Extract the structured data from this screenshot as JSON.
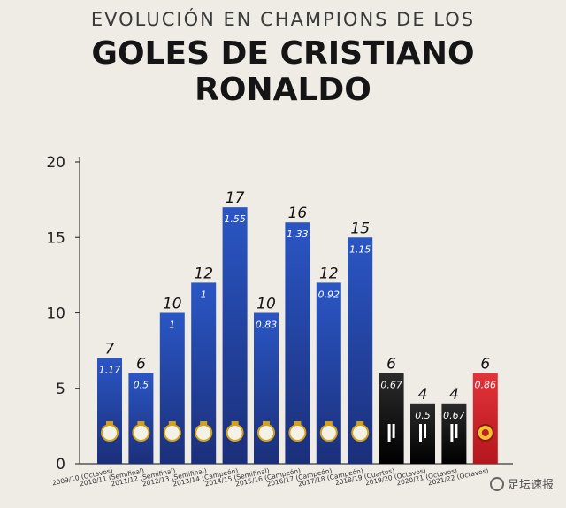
{
  "header": {
    "subtitle": "EVOLUCIÓN EN CHAMPIONS DE LOS",
    "title": "GOLES DE CRISTIANO RONALDO"
  },
  "watermark": {
    "text": "足坛速报"
  },
  "colors": {
    "real_madrid": "#1e3f9a",
    "juventus": "#111111",
    "manchester_united": "#d9282f",
    "background": "#efece6"
  },
  "chart_data": {
    "type": "bar",
    "title": "GOLES DE CRISTIANO RONALDO",
    "ylim": [
      0,
      20
    ],
    "yticks": [
      0,
      5,
      10,
      15,
      20
    ],
    "grid": false,
    "categories": [
      "2009/10 (Octavos)",
      "2010/11 (Semifinal)",
      "2011/12 (Semifinal)",
      "2012/13 (Semifinal)",
      "2013/14 (Campeón)",
      "2014/15 (Semifinal)",
      "2015/16 (Campeón)",
      "2016/17 (Campeón)",
      "2017/18 (Campeón)",
      "2018/19 (Cuartos)",
      "2019/20 (Octavos)",
      "2020/21 (Octavos)",
      "2021/22 (Octavos)"
    ],
    "values": [
      7,
      6,
      10,
      12,
      17,
      10,
      16,
      12,
      15,
      6,
      4,
      4,
      6
    ],
    "ratios": [
      "1.17",
      "0.5",
      "1",
      "1",
      "1.55",
      "0.83",
      "1.33",
      "0.92",
      "1.15",
      "0.67",
      "0.5",
      "0.67",
      "0.86"
    ],
    "clubs": [
      "real_madrid",
      "real_madrid",
      "real_madrid",
      "real_madrid",
      "real_madrid",
      "real_madrid",
      "real_madrid",
      "real_madrid",
      "real_madrid",
      "juventus",
      "juventus",
      "juventus",
      "manchester_united"
    ]
  }
}
